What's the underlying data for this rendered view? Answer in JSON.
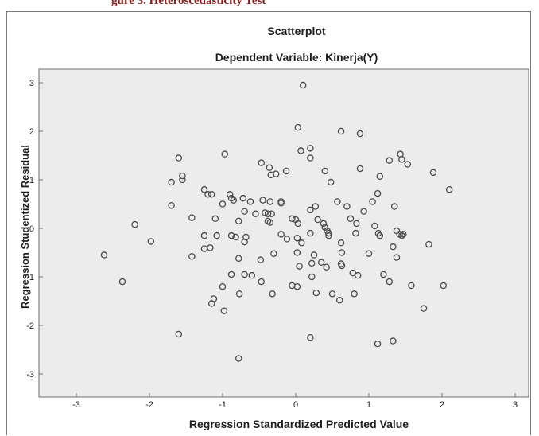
{
  "header": {
    "caption_fragment": "gure 3. Heteroscedasticity Test"
  },
  "chart_data": {
    "type": "scatter",
    "title": "Scatterplot",
    "subtitle": "Dependent Variable: Kinerja(Y)",
    "xlabel": "Regression Standardized Predicted Value",
    "ylabel": "Regression Studentized Residual",
    "xlim": [
      -3,
      3
    ],
    "ylim": [
      -3,
      3
    ],
    "xticks": [
      -3,
      -2,
      -1,
      0,
      1,
      2,
      3
    ],
    "yticks": [
      -3,
      -2,
      -1,
      0,
      1,
      2,
      3
    ],
    "grid": false,
    "colors": {
      "plot_background": "#ececec",
      "marker_stroke": "#4a4a4a",
      "frame_stroke": "#6e6e6e"
    },
    "points": [
      {
        "x": 0.1,
        "y": 2.95
      },
      {
        "x": 0.03,
        "y": 2.08
      },
      {
        "x": 0.62,
        "y": 2.0
      },
      {
        "x": 0.88,
        "y": 1.95
      },
      {
        "x": 0.2,
        "y": 1.65
      },
      {
        "x": 0.07,
        "y": 1.6
      },
      {
        "x": 0.2,
        "y": 1.45
      },
      {
        "x": -0.97,
        "y": 1.53
      },
      {
        "x": -1.6,
        "y": 1.45
      },
      {
        "x": -0.47,
        "y": 1.35
      },
      {
        "x": -0.36,
        "y": 1.25
      },
      {
        "x": -0.34,
        "y": 1.1
      },
      {
        "x": -0.27,
        "y": 1.12
      },
      {
        "x": -0.13,
        "y": 1.18
      },
      {
        "x": 1.28,
        "y": 1.4
      },
      {
        "x": 1.43,
        "y": 1.53
      },
      {
        "x": 1.45,
        "y": 1.42
      },
      {
        "x": 1.53,
        "y": 1.32
      },
      {
        "x": 1.88,
        "y": 1.15
      },
      {
        "x": 0.88,
        "y": 1.23
      },
      {
        "x": 0.4,
        "y": 1.18
      },
      {
        "x": 1.15,
        "y": 1.07
      },
      {
        "x": -1.7,
        "y": 0.95
      },
      {
        "x": -1.55,
        "y": 1.0
      },
      {
        "x": -1.55,
        "y": 1.08
      },
      {
        "x": -1.25,
        "y": 0.8
      },
      {
        "x": -1.2,
        "y": 0.7
      },
      {
        "x": -1.15,
        "y": 0.7
      },
      {
        "x": -0.9,
        "y": 0.7
      },
      {
        "x": -0.88,
        "y": 0.62
      },
      {
        "x": -0.85,
        "y": 0.58
      },
      {
        "x": -0.72,
        "y": 0.62
      },
      {
        "x": -0.62,
        "y": 0.55
      },
      {
        "x": -0.45,
        "y": 0.58
      },
      {
        "x": -0.35,
        "y": 0.55
      },
      {
        "x": -0.2,
        "y": 0.52
      },
      {
        "x": -0.2,
        "y": 0.55
      },
      {
        "x": 0.48,
        "y": 0.95
      },
      {
        "x": 0.57,
        "y": 0.55
      },
      {
        "x": 0.7,
        "y": 0.45
      },
      {
        "x": 1.12,
        "y": 0.72
      },
      {
        "x": 1.05,
        "y": 0.55
      },
      {
        "x": 2.1,
        "y": 0.8
      },
      {
        "x": 0.27,
        "y": 0.45
      },
      {
        "x": 0.75,
        "y": 0.2
      },
      {
        "x": 0.93,
        "y": 0.35
      },
      {
        "x": 1.35,
        "y": 0.45
      },
      {
        "x": -1.7,
        "y": 0.47
      },
      {
        "x": -1.0,
        "y": 0.5
      },
      {
        "x": -1.42,
        "y": 0.22
      },
      {
        "x": -1.1,
        "y": 0.2
      },
      {
        "x": -0.78,
        "y": 0.15
      },
      {
        "x": -0.7,
        "y": 0.35
      },
      {
        "x": -0.55,
        "y": 0.3
      },
      {
        "x": -0.42,
        "y": 0.32
      },
      {
        "x": -0.38,
        "y": 0.3
      },
      {
        "x": -0.38,
        "y": 0.15
      },
      {
        "x": -0.33,
        "y": 0.3
      },
      {
        "x": -0.35,
        "y": 0.12
      },
      {
        "x": -0.05,
        "y": 0.2
      },
      {
        "x": 0.0,
        "y": 0.18
      },
      {
        "x": 0.03,
        "y": 0.1
      },
      {
        "x": 0.2,
        "y": 0.38
      },
      {
        "x": 0.3,
        "y": 0.18
      },
      {
        "x": 0.38,
        "y": 0.1
      },
      {
        "x": 0.4,
        "y": 0.02
      },
      {
        "x": 0.43,
        "y": -0.05
      },
      {
        "x": 0.45,
        "y": -0.1
      },
      {
        "x": 0.45,
        "y": -0.15
      },
      {
        "x": 0.83,
        "y": 0.1
      },
      {
        "x": 1.08,
        "y": 0.05
      },
      {
        "x": 1.13,
        "y": -0.1
      },
      {
        "x": 1.15,
        "y": -0.15
      },
      {
        "x": 1.38,
        "y": -0.05
      },
      {
        "x": 1.42,
        "y": -0.12
      },
      {
        "x": 1.45,
        "y": -0.15
      },
      {
        "x": 1.47,
        "y": -0.12
      },
      {
        "x": -2.2,
        "y": 0.08
      },
      {
        "x": -1.98,
        "y": -0.27
      },
      {
        "x": -1.25,
        "y": -0.15
      },
      {
        "x": -1.08,
        "y": -0.15
      },
      {
        "x": -0.88,
        "y": -0.15
      },
      {
        "x": -0.82,
        "y": -0.18
      },
      {
        "x": -0.68,
        "y": -0.18
      },
      {
        "x": -0.7,
        "y": -0.28
      },
      {
        "x": -0.2,
        "y": -0.12
      },
      {
        "x": -0.12,
        "y": -0.22
      },
      {
        "x": 0.02,
        "y": -0.2
      },
      {
        "x": 0.08,
        "y": -0.3
      },
      {
        "x": 0.2,
        "y": -0.1
      },
      {
        "x": 0.62,
        "y": -0.3
      },
      {
        "x": 0.82,
        "y": -0.1
      },
      {
        "x": 1.0,
        "y": -0.52
      },
      {
        "x": 1.33,
        "y": -0.38
      },
      {
        "x": 1.82,
        "y": -0.33
      },
      {
        "x": -2.62,
        "y": -0.55
      },
      {
        "x": -1.42,
        "y": -0.58
      },
      {
        "x": -1.25,
        "y": -0.42
      },
      {
        "x": -1.17,
        "y": -0.4
      },
      {
        "x": -0.78,
        "y": -0.62
      },
      {
        "x": -0.48,
        "y": -0.65
      },
      {
        "x": -0.3,
        "y": -0.52
      },
      {
        "x": 0.02,
        "y": -0.5
      },
      {
        "x": 0.25,
        "y": -0.55
      },
      {
        "x": 0.63,
        "y": -0.5
      },
      {
        "x": 1.38,
        "y": -0.6
      },
      {
        "x": 0.05,
        "y": -0.78
      },
      {
        "x": 0.22,
        "y": -0.72
      },
      {
        "x": 0.35,
        "y": -0.7
      },
      {
        "x": 0.42,
        "y": -0.8
      },
      {
        "x": 0.62,
        "y": -0.73
      },
      {
        "x": 0.63,
        "y": -0.77
      },
      {
        "x": 0.78,
        "y": -0.92
      },
      {
        "x": 0.85,
        "y": -0.97
      },
      {
        "x": -2.37,
        "y": -1.1
      },
      {
        "x": -1.0,
        "y": -1.2
      },
      {
        "x": -0.88,
        "y": -0.95
      },
      {
        "x": -0.7,
        "y": -0.95
      },
      {
        "x": -0.6,
        "y": -0.97
      },
      {
        "x": -0.47,
        "y": -1.1
      },
      {
        "x": -0.05,
        "y": -1.18
      },
      {
        "x": 0.02,
        "y": -1.2
      },
      {
        "x": 0.22,
        "y": -1.0
      },
      {
        "x": 1.2,
        "y": -0.95
      },
      {
        "x": 1.28,
        "y": -1.1
      },
      {
        "x": 1.58,
        "y": -1.18
      },
      {
        "x": 2.02,
        "y": -1.18
      },
      {
        "x": -1.15,
        "y": -1.55
      },
      {
        "x": -1.12,
        "y": -1.45
      },
      {
        "x": -0.98,
        "y": -1.7
      },
      {
        "x": -0.77,
        "y": -1.35
      },
      {
        "x": -0.32,
        "y": -1.35
      },
      {
        "x": 0.28,
        "y": -1.33
      },
      {
        "x": 0.5,
        "y": -1.35
      },
      {
        "x": 0.6,
        "y": -1.48
      },
      {
        "x": 0.8,
        "y": -1.35
      },
      {
        "x": 1.75,
        "y": -1.65
      },
      {
        "x": -1.6,
        "y": -2.18
      },
      {
        "x": 0.2,
        "y": -2.25
      },
      {
        "x": 1.12,
        "y": -2.38
      },
      {
        "x": 1.33,
        "y": -2.32
      },
      {
        "x": -0.78,
        "y": -2.68
      }
    ]
  }
}
